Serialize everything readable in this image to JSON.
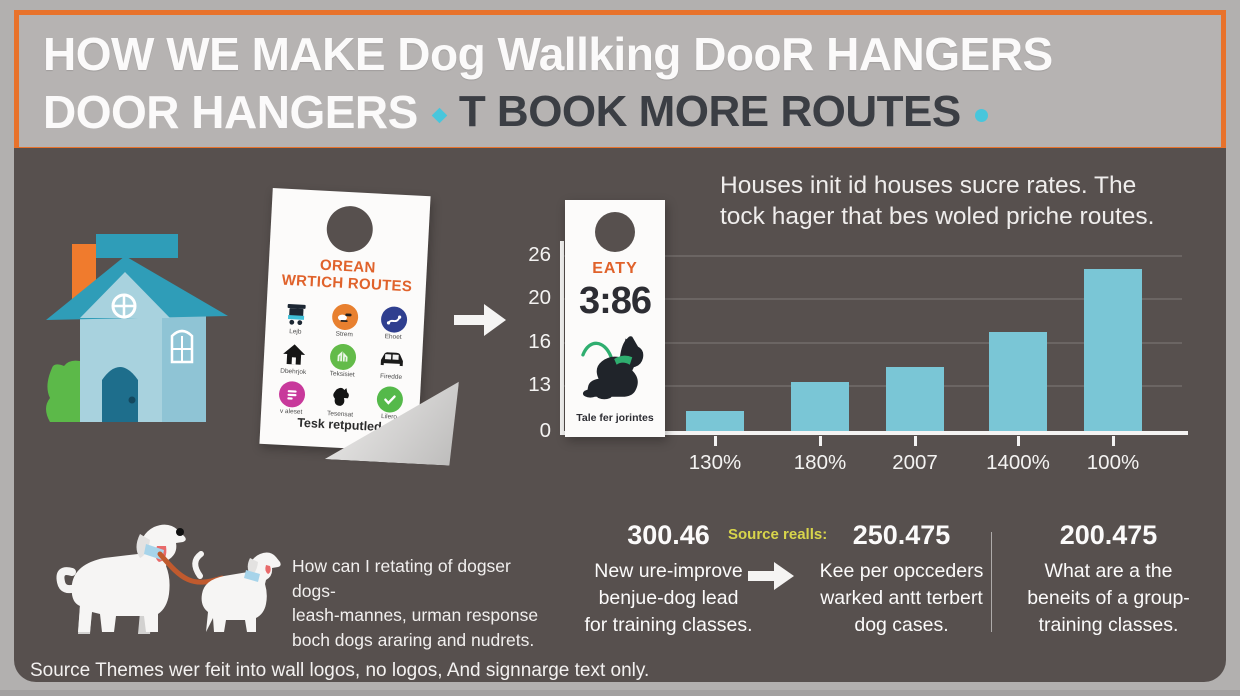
{
  "colors": {
    "accent_orange": "#e8722b",
    "cyan": "#48c6dc",
    "bar": "#7ac6d6",
    "panel_bg": "#57504e",
    "outer_bg": "#b2b0af",
    "yellow": "#d8d54b",
    "dark_text": "#3b3e44"
  },
  "header": {
    "line1": "HOW WE MAKE Dog Wallking DooR HANGERS",
    "line2_white": "DOOR HANGERS",
    "line2_dark": "T BOOK MORE ROUTES"
  },
  "left_hanger": {
    "title_line1": "OREAN",
    "title_line2": "WRTICH ROUTES",
    "footer": "Tesk retputled",
    "icons": [
      {
        "name": "cart-icon",
        "style": "plain",
        "glyph": "cart",
        "bg": "",
        "label": "Lejb"
      },
      {
        "name": "paw-badge-icon",
        "style": "badge",
        "glyph": "paw",
        "bg": "#e8802f",
        "label": "Strem"
      },
      {
        "name": "route-badge-icon",
        "style": "badge",
        "glyph": "route",
        "bg": "#2f3f8f",
        "label": "Ehoet"
      },
      {
        "name": "house-icon",
        "style": "plain",
        "glyph": "house",
        "bg": "",
        "label": "Dbehrjok"
      },
      {
        "name": "park-badge-icon",
        "style": "badge",
        "glyph": "park",
        "bg": "#63bb49",
        "label": "Teksisiet"
      },
      {
        "name": "car-icon",
        "style": "plain",
        "glyph": "car",
        "bg": "",
        "label": "Firedde"
      },
      {
        "name": "tag-badge-icon",
        "style": "badge",
        "glyph": "bars",
        "bg": "#c8399b",
        "label": "v aleset"
      },
      {
        "name": "dog-icon",
        "style": "plain",
        "glyph": "dog",
        "bg": "",
        "label": "Tesensat"
      },
      {
        "name": "check-badge-icon",
        "style": "badge",
        "glyph": "check",
        "bg": "#55b94a",
        "label": "Lilero"
      }
    ]
  },
  "chart_hanger": {
    "brand": "EATY",
    "number": "3:86",
    "footer": "Tale fer jorintes"
  },
  "chart_heading": {
    "line1": "Houses init id houses sucre rates. The",
    "line2": "tock hager that bes woled priche routes."
  },
  "chart_data": {
    "type": "bar",
    "title": "Houses init id houses sucre rates. The tock hager that bes woled priche routes.",
    "categories": [
      "130%",
      "180%",
      "2007",
      "1400%",
      "100%"
    ],
    "values": [
      3,
      7.3,
      9.4,
      14.6,
      24
    ],
    "yticks": [
      26,
      20,
      16,
      13,
      0
    ],
    "ylim": [
      0,
      26
    ],
    "xlabel": "",
    "ylabel": "",
    "grid": true,
    "legend": "none",
    "bar_color": "#7ac6d6"
  },
  "dogs_text": {
    "line1": "How can I retating of dogser dogs-",
    "line2": "leash-mannes, urman response",
    "line3": "boch dogs araring and nudrets."
  },
  "stats": {
    "source_label": "Source realls:",
    "items": [
      {
        "number": "300.46",
        "lines": [
          "New ure-improve",
          "benjue-dog lead",
          "for training classes."
        ]
      },
      {
        "number": "250.475",
        "lines": [
          "Kee per opcceders",
          "warked antt terbert",
          "dog cases."
        ]
      },
      {
        "number": "200.475",
        "lines": [
          "What are a the",
          "beneits of a group-",
          "training classes."
        ]
      }
    ]
  },
  "footer": {
    "caption": "Source Themes wer feit into wall logos, no logos, And signnarge text only."
  }
}
